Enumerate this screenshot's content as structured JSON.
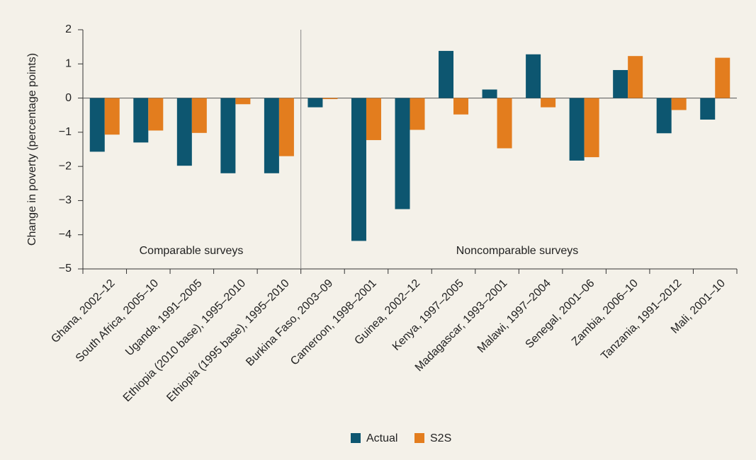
{
  "chart_data": {
    "type": "bar",
    "y_label": "Change in poverty (percentage points)",
    "annotations": [
      "Comparable surveys",
      "Noncomparable surveys"
    ],
    "categories": [
      "Ghana, 2002–12",
      "South Africa, 2005–10",
      "Uganda, 1991–2005",
      "Ethiopia (2010 base), 1995–2010",
      "Ethiopia (1995 base), 1995–2010",
      "Burkina Faso, 2003–09",
      "Cameroon, 1998–2001",
      "Guinea, 2002–12",
      "Kenya, 1997–2005",
      "Madagascar, 1993–2001",
      "Malawi, 1997–2004",
      "Senegal, 2001–06",
      "Zambia, 2006–10",
      "Tanzania, 1991–2012",
      "Mali, 2001–10"
    ],
    "series": [
      {
        "name": "Actual",
        "color": "#0d5670",
        "values": [
          -1.57,
          -1.3,
          -1.98,
          -2.2,
          -2.2,
          -0.27,
          -4.18,
          -3.25,
          1.38,
          0.25,
          1.28,
          -1.83,
          0.82,
          -1.03,
          -0.63
        ]
      },
      {
        "name": "S2S",
        "color": "#e37d1e",
        "values": [
          -1.07,
          -0.95,
          -1.02,
          -0.18,
          -1.7,
          -0.03,
          -1.23,
          -0.93,
          -0.48,
          -1.47,
          -0.27,
          -1.73,
          1.23,
          -0.35,
          1.18
        ]
      }
    ],
    "ylim": [
      -5,
      2
    ],
    "yticks": [
      {
        "value": -5,
        "label": "−5"
      },
      {
        "value": -4,
        "label": "−4"
      },
      {
        "value": -3,
        "label": "−3"
      },
      {
        "value": -2,
        "label": "−2"
      },
      {
        "value": -1,
        "label": "−1"
      },
      0,
      1,
      2
    ],
    "legend": "bottom"
  }
}
